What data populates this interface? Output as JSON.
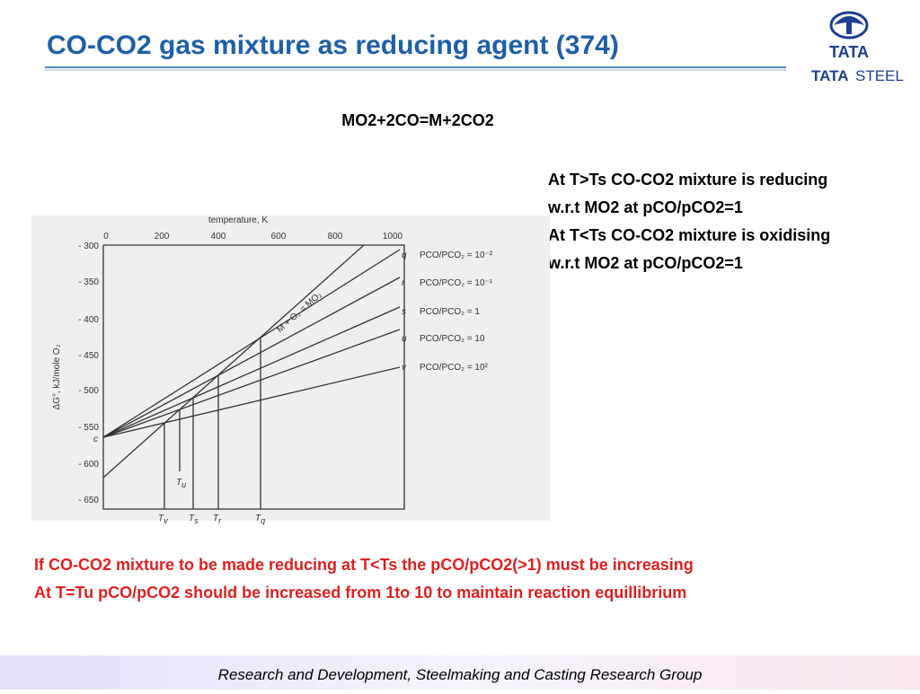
{
  "header": {
    "title": "CO-CO2 gas mixture as reducing agent (374)"
  },
  "logo": {
    "brand": "TATA",
    "company_bold": "TATA",
    "company_light": "STEEL"
  },
  "equation": "MO2+2CO=M+2CO2",
  "notes": [
    "At T>Ts CO-CO2 mixture is reducing",
    "w.r.t MO2 at pCO/pCO2=1",
    "At T<Ts CO-CO2 mixture is oxidising",
    "w.r.t MO2 at pCO/pCO2=1"
  ],
  "figure": {
    "x_axis_title": "temperature, K",
    "y_axis_title": "ΔG°, kJ/mole O₂",
    "x_tick_labels": [
      "0",
      "200",
      "400",
      "600",
      "800",
      "1000"
    ],
    "y_tick_labels": [
      "- 300",
      "- 350",
      "- 400",
      "- 450",
      "- 500",
      "- 550",
      "- 600",
      "- 650"
    ],
    "line_label": "M + O₂ = MO₂",
    "origin_label": "c",
    "fan_lines": [
      {
        "letter": "q",
        "label": "PCO/PCO₂ = 10⁻²"
      },
      {
        "letter": "r",
        "label": "PCO/PCO₂ = 10⁻¹"
      },
      {
        "letter": "s",
        "label": "PCO/PCO₂ = 1"
      },
      {
        "letter": "u",
        "label": "PCO/PCO₂ = 10"
      },
      {
        "letter": "v",
        "label": "PCO/PCO₂ = 10²"
      }
    ],
    "temperatures": [
      {
        "main": "T",
        "sub": "v"
      },
      {
        "main": "T",
        "sub": "u"
      },
      {
        "main": "T",
        "sub": "s"
      },
      {
        "main": "T",
        "sub": "r"
      },
      {
        "main": "T",
        "sub": "q"
      }
    ]
  },
  "conclusions": [
    "If CO-CO2 mixture to be made reducing at T<Ts the pCO/pCO2(>1) must be increasing",
    "At T=Tu pCO/pCO2 should be increased from 1to 10 to maintain reaction equillibrium"
  ],
  "footer": "Research and Development, Steelmaking and Casting Research Group"
}
